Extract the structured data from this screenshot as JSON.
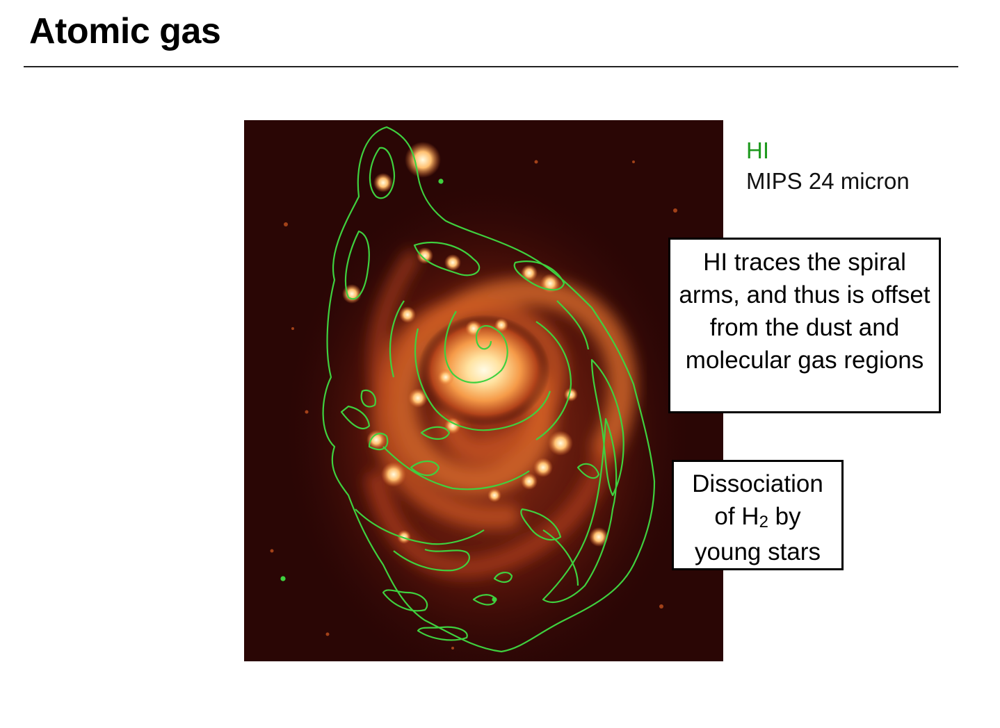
{
  "slide": {
    "title": "Atomic gas"
  },
  "figure": {
    "legend": {
      "hi_label": "HI",
      "mips_label": "MIPS 24 micron"
    },
    "colors": {
      "contour": "#3fd13f",
      "background": "#2a0605",
      "emission_hot": "#fff4c8",
      "emission_mid": "#f08a3a",
      "emission_low": "#8a2310"
    }
  },
  "callouts": {
    "spiral_arms": "HI traces the spiral arms, and thus is offset from the dust and molecular gas regions",
    "dissociation": {
      "line1": "Dissociation",
      "line2_prefix": "of H",
      "line2_sub": "2",
      "line2_suffix": " by",
      "line3": "young stars"
    }
  }
}
